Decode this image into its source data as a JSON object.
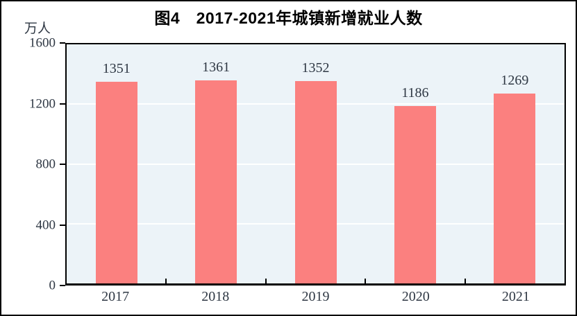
{
  "figure": {
    "title": "图4　2017-2021年城镇新增就业人数",
    "unit_label": "万人"
  },
  "colors": {
    "bar": "#fb807f",
    "plot_background": "#ecf3f8",
    "gridline": "#ffffff",
    "axis": "#000000",
    "tick_text": "#2e3743"
  },
  "chart_data": {
    "type": "bar",
    "title": "图4　2017-2021年城镇新增就业人数",
    "ylabel": "万人",
    "xlabel": "",
    "categories": [
      "2017",
      "2018",
      "2019",
      "2020",
      "2021"
    ],
    "values": [
      1351,
      1361,
      1352,
      1186,
      1269
    ],
    "ylim": [
      0,
      1600
    ],
    "yticks": [
      0,
      400,
      800,
      1200,
      1600
    ],
    "gridlines": [
      400,
      800,
      1200
    ],
    "grid": true,
    "legend": false
  }
}
